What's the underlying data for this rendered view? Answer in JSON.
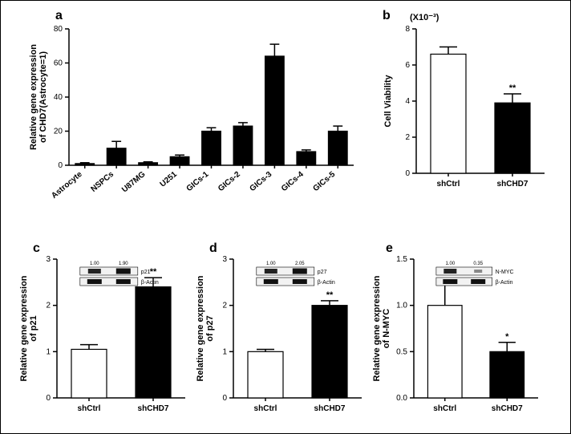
{
  "colors": {
    "open_bar_fill": "#ffffff",
    "filled_bar_fill": "#000000",
    "stroke": "#000000",
    "background": "#ffffff"
  },
  "panel_a": {
    "label": "a",
    "type": "bar",
    "y_title_line1": "Relative gene expression",
    "y_title_line2": "of  CHD7(Astrocyte=1)",
    "categories": [
      "Astrocyte",
      "NSPCs",
      "U87MG",
      "U251",
      "GICs-1",
      "GICs-2",
      "GICs-3",
      "GICs-4",
      "GICs-5"
    ],
    "values": [
      1,
      10,
      1.5,
      5,
      20,
      23,
      64,
      8,
      20
    ],
    "errors": [
      0.5,
      4,
      0.5,
      1,
      2,
      2,
      7,
      1,
      3
    ],
    "ylim": [
      0,
      80
    ],
    "ytick_step": 20,
    "bar_fill": "#000000",
    "bar_width": 0.6
  },
  "panel_b": {
    "label": "b",
    "type": "bar",
    "units_label": "(X10⁻³)",
    "y_title": "Cell Viability",
    "categories": [
      "shCtrl",
      "shCHD7"
    ],
    "values": [
      6.6,
      3.9
    ],
    "errors": [
      0.4,
      0.5
    ],
    "fills": [
      "#ffffff",
      "#000000"
    ],
    "ylim": [
      0,
      8
    ],
    "ytick_step": 2,
    "sig": "**",
    "sig_over": 1
  },
  "panel_c": {
    "label": "c",
    "type": "bar",
    "y_title_line1": "Relative gene expression",
    "y_title_line2": "of p21",
    "categories": [
      "shCtrl",
      "shCHD7"
    ],
    "values": [
      1.05,
      2.4
    ],
    "errors": [
      0.1,
      0.2
    ],
    "fills": [
      "#ffffff",
      "#000000"
    ],
    "ylim": [
      0,
      3
    ],
    "ytick_step": 1,
    "sig": "**",
    "sig_over": 1,
    "inset": {
      "nums": [
        "1.00",
        "1.90"
      ],
      "rows": [
        "p21",
        "β-Actin"
      ]
    }
  },
  "panel_d": {
    "label": "d",
    "type": "bar",
    "y_title_line1": "Relative gene expression",
    "y_title_line2": "of p27",
    "categories": [
      "shCtrl",
      "shCHD7"
    ],
    "values": [
      1.0,
      2.0
    ],
    "errors": [
      0.05,
      0.1
    ],
    "fills": [
      "#ffffff",
      "#000000"
    ],
    "ylim": [
      0,
      3
    ],
    "ytick_step": 1,
    "sig": "**",
    "sig_over": 1,
    "inset": {
      "nums": [
        "1.00",
        "2.05"
      ],
      "rows": [
        "p27",
        "β-Actin"
      ]
    }
  },
  "panel_e": {
    "label": "e",
    "type": "bar",
    "y_title_line1": "Relative gene expression",
    "y_title_line2": "of N-MYC",
    "categories": [
      "shCtrl",
      "shCHD7"
    ],
    "values": [
      1.0,
      0.5
    ],
    "errors": [
      0.27,
      0.1
    ],
    "fills": [
      "#ffffff",
      "#000000"
    ],
    "ylim": [
      0,
      1.5
    ],
    "ytick_step": 0.5,
    "sig": "*",
    "sig_over": 1,
    "inset": {
      "nums": [
        "1.00",
        "0.35"
      ],
      "rows": [
        "N-MYC",
        "β-Actin"
      ]
    }
  }
}
